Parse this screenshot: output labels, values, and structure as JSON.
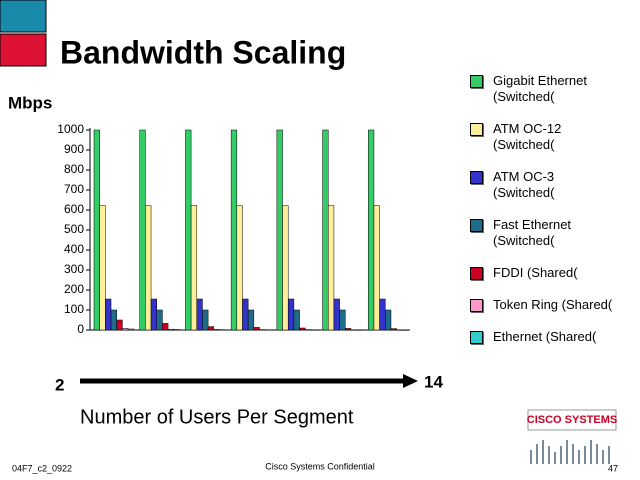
{
  "chart_data": {
    "type": "bar",
    "title": "Bandwidth Scaling",
    "y_label": "Mbps",
    "x_label": "Number of Users Per Segment",
    "x_start": "2",
    "x_end": "14",
    "categories": [
      null,
      null,
      null,
      null,
      null,
      null,
      null
    ],
    "ylim": [
      0,
      1000
    ],
    "yticks": [
      0,
      100,
      200,
      300,
      400,
      500,
      600,
      700,
      800,
      900,
      1000
    ],
    "series": [
      {
        "name": "Gigabit Ethernet (Switched(",
        "color": "#33cc66",
        "values": [
          1000,
          1000,
          1000,
          1000,
          1000,
          1000,
          1000
        ]
      },
      {
        "name": "ATM OC-12 (Switched(",
        "color": "#ffee99",
        "values": [
          622,
          622,
          622,
          622,
          622,
          622,
          622
        ]
      },
      {
        "name": "ATM OC-3 (Switched(",
        "color": "#3333cc",
        "values": [
          155,
          155,
          155,
          155,
          155,
          155,
          155
        ]
      },
      {
        "name": "Fast Ethernet (Switched(",
        "color": "#1f6b8a",
        "values": [
          100,
          100,
          100,
          100,
          100,
          100,
          100
        ]
      },
      {
        "name": "FDDI (Shared(",
        "color": "#cc0022",
        "values": [
          50,
          33,
          17,
          13,
          10,
          8,
          7
        ]
      },
      {
        "name": "Token Ring (Shared(",
        "color": "#ff99cc",
        "values": [
          8,
          4,
          3,
          2,
          2,
          1,
          1
        ]
      },
      {
        "name": "Ethernet (Shared(",
        "color": "#33cccc",
        "values": [
          5,
          2.5,
          1.7,
          1.3,
          1,
          0.8,
          0.7
        ]
      }
    ]
  },
  "footer": {
    "code": "04F7_c2_0922",
    "confidential": "Cisco Systems Confidential",
    "page": "47",
    "logo": "CISCO SYSTEMS"
  }
}
